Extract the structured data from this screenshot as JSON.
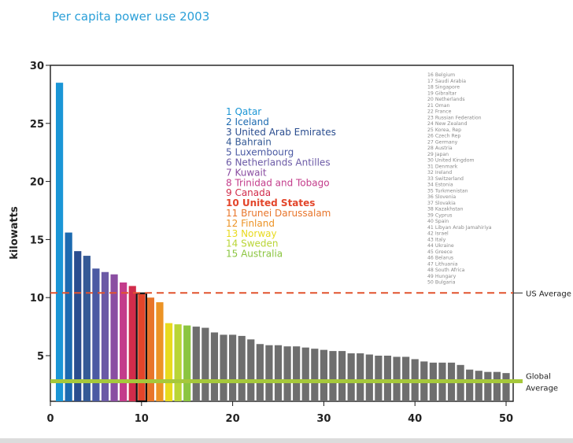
{
  "chart_data": {
    "type": "bar",
    "title": "Per capita power use 2003",
    "ylabel": "kilowatts",
    "xlabel": "",
    "xlim": [
      0,
      51
    ],
    "ylim": [
      0,
      30
    ],
    "xticks": [
      0,
      10,
      20,
      30,
      40,
      50
    ],
    "yticks": [
      5,
      10,
      15,
      20,
      25,
      30
    ],
    "grid": false,
    "x": [
      1,
      2,
      3,
      4,
      5,
      6,
      7,
      8,
      9,
      10,
      11,
      12,
      13,
      14,
      15,
      16,
      17,
      18,
      19,
      20,
      21,
      22,
      23,
      24,
      25,
      26,
      27,
      28,
      29,
      30,
      31,
      32,
      33,
      34,
      35,
      36,
      37,
      38,
      39,
      40,
      41,
      42,
      43,
      44,
      45,
      46,
      47,
      48,
      49,
      50
    ],
    "values": [
      28.5,
      15.6,
      14.0,
      13.6,
      12.5,
      12.2,
      12.0,
      11.3,
      11.0,
      10.3,
      10.0,
      9.6,
      7.8,
      7.7,
      7.6,
      7.5,
      7.4,
      7.0,
      6.8,
      6.8,
      6.7,
      6.4,
      6.0,
      5.9,
      5.9,
      5.8,
      5.8,
      5.7,
      5.6,
      5.5,
      5.4,
      5.4,
      5.2,
      5.2,
      5.1,
      5.0,
      5.0,
      4.9,
      4.9,
      4.7,
      4.5,
      4.4,
      4.4,
      4.4,
      4.2,
      3.8,
      3.7,
      3.6,
      3.6,
      3.5
    ],
    "bar_colors": [
      "#1a96d6",
      "#1c6ab0",
      "#2a4d8f",
      "#355a96",
      "#4b5aa3",
      "#6b5aa6",
      "#8a4ea2",
      "#c33c8b",
      "#d12c4b",
      "#e3452a",
      "#e8752a",
      "#ec9325",
      "#e8da1e",
      "#b9d536",
      "#8bc540",
      "#6e6e6e",
      "#6e6e6e",
      "#6e6e6e",
      "#6e6e6e",
      "#6e6e6e",
      "#6e6e6e",
      "#6e6e6e",
      "#6e6e6e",
      "#6e6e6e",
      "#6e6e6e",
      "#6e6e6e",
      "#6e6e6e",
      "#6e6e6e",
      "#6e6e6e",
      "#6e6e6e",
      "#6e6e6e",
      "#6e6e6e",
      "#6e6e6e",
      "#6e6e6e",
      "#6e6e6e",
      "#6e6e6e",
      "#6e6e6e",
      "#6e6e6e",
      "#6e6e6e",
      "#6e6e6e",
      "#6e6e6e",
      "#6e6e6e",
      "#6e6e6e",
      "#6e6e6e",
      "#6e6e6e",
      "#6e6e6e",
      "#6e6e6e",
      "#6e6e6e",
      "#6e6e6e",
      "#6e6e6e"
    ],
    "highlight_index": 10,
    "reference_lines": [
      {
        "label": "US Average",
        "value": 10.4,
        "color": "#e1532f",
        "style": "dashed"
      },
      {
        "label": "Global\nAverage",
        "value": 2.8,
        "color": "#a6c83b",
        "style": "solid"
      }
    ],
    "legend_top": [
      {
        "text": "1 Qatar",
        "color": "#1a96d6",
        "bold": false
      },
      {
        "text": "2 Iceland",
        "color": "#1c6ab0",
        "bold": false
      },
      {
        "text": "3 United Arab Emirates",
        "color": "#2a4d8f",
        "bold": false
      },
      {
        "text": "4 Bahrain",
        "color": "#355a96",
        "bold": false
      },
      {
        "text": "5 Luxembourg",
        "color": "#4b5aa3",
        "bold": false
      },
      {
        "text": "6 Netherlands Antilles",
        "color": "#6b5aa6",
        "bold": false
      },
      {
        "text": "7 Kuwait",
        "color": "#8a4ea2",
        "bold": false
      },
      {
        "text": "8 Trinidad and Tobago",
        "color": "#c33c8b",
        "bold": false
      },
      {
        "text": "9 Canada",
        "color": "#d12c4b",
        "bold": false
      },
      {
        "text": "10 United States",
        "color": "#e3452a",
        "bold": true
      },
      {
        "text": "11 Brunei Darussalam",
        "color": "#e8752a",
        "bold": false
      },
      {
        "text": "12 Finland",
        "color": "#ec9325",
        "bold": false
      },
      {
        "text": "13 Norway",
        "color": "#e8da1e",
        "bold": false
      },
      {
        "text": "14 Sweden",
        "color": "#b9d536",
        "bold": false
      },
      {
        "text": "15 Australia",
        "color": "#8bc540",
        "bold": false
      }
    ],
    "legend_rest": [
      "16 Belgium",
      "17 Saudi Arabia",
      "18 Singapore",
      "19 Gibraltar",
      "20 Netherlands",
      "21 Oman",
      "22 France",
      "23 Russian Federation",
      "24 New Zealand",
      "25 Korea, Rep",
      "26 Czech Rep",
      "27 Germany",
      "28 Austria",
      "29 Japan",
      "30 United Kingdom",
      "31 Denmark",
      "32 Ireland",
      "33 Switzerland",
      "34 Estonia",
      "35 Turkmenistan",
      "36 Slovenia",
      "37 Slovakia",
      "38 Kazakhstan",
      "39 Cyprus",
      "40 Spain",
      "41 Libyan Arab Jamahiriya",
      "42 Israel",
      "43 Italy",
      "44 Ukraine",
      "45 Greece",
      "46 Belarus",
      "47 Lithuania",
      "48 South Africa",
      "49 Hungary",
      "50 Bulgaria"
    ],
    "legend_rest_color": "#8a8a8a"
  }
}
